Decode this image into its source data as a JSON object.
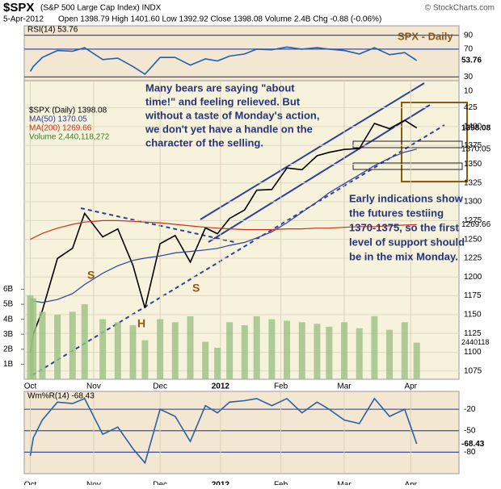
{
  "header": {
    "symbol": "$SPX",
    "name": "(S&P 500 Large Cap Index) INDX",
    "date": "5-Apr-2012",
    "quote": "Open 1398.79  High 1401.60  Low 1392.92  Close 1398.08  Volume 2.4B  Chg -0.88 (-0.06%)",
    "credit": "© StockCharts.com",
    "chart_label": "SPX - Daily"
  },
  "chart_data": [
    {
      "type": "line",
      "title": "RSI(14) 53.76",
      "x": [
        0,
        1,
        4,
        9,
        14,
        18,
        24,
        29,
        34,
        38,
        43,
        48,
        53,
        58,
        62,
        66,
        71,
        75,
        80,
        85,
        90,
        95,
        99,
        104,
        109,
        114,
        119,
        124,
        128
      ],
      "xlim": [
        -2,
        142
      ],
      "ylim": [
        20,
        100
      ],
      "yticks": [
        90,
        70,
        30,
        10
      ],
      "grid": true,
      "series": [
        {
          "name": "RSI(14)",
          "color": "#1f5fb4",
          "values": [
            38,
            45,
            58,
            68,
            67,
            72,
            55,
            57,
            45,
            34,
            58,
            58,
            47,
            56,
            53,
            60,
            63,
            70,
            69,
            73,
            70,
            72,
            70,
            68,
            63,
            72,
            62,
            65,
            53.76
          ]
        }
      ]
    },
    {
      "type": "line",
      "x": [
        0,
        1,
        4,
        9,
        14,
        18,
        24,
        29,
        34,
        38,
        43,
        48,
        53,
        58,
        62,
        66,
        71,
        75,
        80,
        85,
        90,
        95,
        99,
        104,
        109,
        114,
        119,
        124,
        128
      ],
      "xlim": [
        -2,
        142
      ],
      "xticks": [
        {
          "value": 0,
          "label": "Oct"
        },
        {
          "value": 21,
          "label": "Nov"
        },
        {
          "value": 43,
          "label": "Dec"
        },
        {
          "value": 63,
          "label": "2012"
        },
        {
          "value": 83,
          "label": "Feb"
        },
        {
          "value": 104,
          "label": "Mar"
        },
        {
          "value": 126,
          "label": "Apr"
        }
      ],
      "ylim": [
        1064,
        1461
      ],
      "yticks": [
        1075,
        1100,
        1125,
        1150,
        1175,
        1200,
        1225,
        1250,
        1275,
        1300,
        1325,
        1350,
        1375,
        1400,
        {
          "value": 1425,
          "label": "425"
        }
      ],
      "y2lim": [
        0,
        19.9
      ],
      "y2ticks": [
        {
          "value": 1,
          "label": "1B"
        },
        {
          "value": 2,
          "label": "2B"
        },
        {
          "value": 3,
          "label": "3B"
        },
        {
          "value": 4,
          "label": "4B"
        },
        {
          "value": 5,
          "label": "5B"
        },
        {
          "value": 6,
          "label": "6B"
        }
      ],
      "grid": true,
      "series": [
        {
          "name": "$SPX (Daily) 1398.08",
          "color": "#000000",
          "values": [
            1099.23,
            1123.95,
            1155.46,
            1224.58,
            1238.25,
            1284.59,
            1253.23,
            1263.85,
            1215.65,
            1158.67,
            1244.28,
            1255.19,
            1219.66,
            1265.33,
            1257.6,
            1277.81,
            1289.09,
            1315.38,
            1316.33,
            1344.9,
            1342.64,
            1361.23,
            1365.74,
            1369.63,
            1370.87,
            1404.17,
            1397.11,
            1408.47,
            1398.08
          ]
        },
        {
          "name": "MA(50) 1370.05",
          "color": "#2d3f9e",
          "values": [
            1170,
            1168,
            1166,
            1170,
            1178,
            1190,
            1205,
            1215,
            1222,
            1225,
            1228,
            1232,
            1234,
            1236,
            1238,
            1242,
            1246,
            1252,
            1260,
            1272,
            1286,
            1300,
            1312,
            1324,
            1336,
            1348,
            1358,
            1366,
            1370.05
          ]
        },
        {
          "name": "MA(200) 1269.66",
          "color": "#d0301c",
          "values": [
            1250,
            1252,
            1258,
            1265,
            1270,
            1273,
            1275,
            1275,
            1274,
            1273,
            1272,
            1270,
            1268,
            1266,
            1265,
            1264,
            1263,
            1263,
            1263,
            1264,
            1264,
            1265,
            1265,
            1266,
            1267,
            1267,
            1268,
            1269,
            1269.66
          ]
        },
        {
          "name": "Volume 2,440,118,272",
          "color": "#9bbf85",
          "axis": "y2",
          "values": [
            5.6,
            5.4,
            4.5,
            4.3,
            4.5,
            5.0,
            4.0,
            3.8,
            3.6,
            2.6,
            4.0,
            3.8,
            4.2,
            2.5,
            2.1,
            3.8,
            3.6,
            4.2,
            4.0,
            3.9,
            3.8,
            3.7,
            3.5,
            3.8,
            3.4,
            4.2,
            3.3,
            3.8,
            2.44
          ],
          "last_label": "2440118"
        }
      ],
      "note_1": [
        "Many bears are saying \"about",
        "time!\" and feeling relieved. But",
        "without a taste of Monday's action,",
        "we don't yet have a handle on the",
        "character of the selling."
      ],
      "note_2": [
        "Early indications show",
        "the futures testiing",
        "1370-1375, so the first",
        "level of support should",
        "be in the mix Monday."
      ],
      "pattern_labels": [
        "S",
        "H",
        "S"
      ]
    },
    {
      "type": "line",
      "title": "Wm%R(14) -68.43",
      "x": [
        0,
        1,
        4,
        9,
        14,
        18,
        24,
        29,
        34,
        38,
        43,
        48,
        53,
        58,
        62,
        66,
        71,
        75,
        80,
        85,
        90,
        95,
        99,
        104,
        109,
        114,
        119,
        124,
        128
      ],
      "xlim": [
        -2,
        142
      ],
      "xticks": [
        {
          "value": 0,
          "label": "Oct"
        },
        {
          "value": 21,
          "label": "Nov"
        },
        {
          "value": 43,
          "label": "Dec"
        },
        {
          "value": 63,
          "label": "2012"
        },
        {
          "value": 83,
          "label": "Feb"
        },
        {
          "value": 104,
          "label": "Mar"
        },
        {
          "value": 126,
          "label": "Apr"
        }
      ],
      "ylim": [
        -110,
        5
      ],
      "yticks": [
        -20,
        -50,
        -80
      ],
      "grid": true,
      "series": [
        {
          "name": "Wm%R(14)",
          "color": "#2d5fa8",
          "values": [
            -85,
            -60,
            -35,
            -10,
            -12,
            -5,
            -55,
            -45,
            -75,
            -95,
            -20,
            -30,
            -65,
            -15,
            -25,
            -10,
            -8,
            -5,
            -15,
            -5,
            -25,
            -10,
            -20,
            -35,
            -40,
            -5,
            -30,
            -20,
            -68.43
          ]
        }
      ]
    }
  ]
}
